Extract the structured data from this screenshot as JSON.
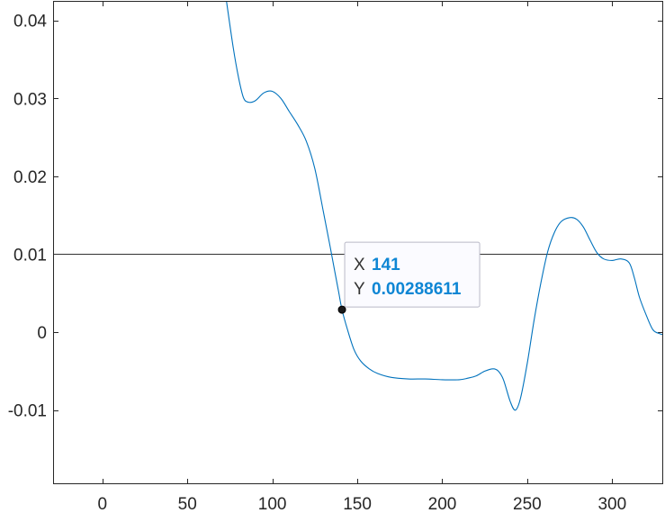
{
  "chart_data": {
    "type": "line",
    "title": "",
    "xlabel": "",
    "ylabel": "",
    "xlim": [
      -29,
      330
    ],
    "ylim": [
      -0.0195,
      0.0425
    ],
    "x_ticks": [
      0,
      50,
      100,
      150,
      200,
      250,
      300
    ],
    "y_ticks": [
      -0.01,
      0,
      0.01,
      0.02,
      0.03,
      0.04
    ],
    "x_tick_labels": [
      "0",
      "50",
      "100",
      "150",
      "200",
      "250",
      "300"
    ],
    "y_tick_labels": [
      "-0.01",
      "0",
      "0.01",
      "0.02",
      "0.03",
      "0.04"
    ],
    "grid": false,
    "reference_line": {
      "y": 0.01
    },
    "series": [
      {
        "color": "#0072BD",
        "x": [
          73,
          77,
          80,
          83,
          86,
          90,
          95,
          100,
          105,
          110,
          115,
          120,
          125,
          130,
          134,
          137,
          139,
          141,
          144,
          148,
          152,
          157,
          162,
          170,
          180,
          190,
          200,
          210,
          215,
          220,
          225,
          230,
          233,
          236,
          240,
          243,
          246,
          250,
          254,
          258,
          262,
          266,
          270,
          275,
          279,
          283,
          287,
          291,
          295,
          300,
          305,
          310,
          313,
          316,
          320,
          324,
          328,
          330
        ],
        "y": [
          0.0425,
          0.0365,
          0.0328,
          0.0301,
          0.0295,
          0.0297,
          0.0307,
          0.0309,
          0.03,
          0.0283,
          0.0266,
          0.0245,
          0.021,
          0.0155,
          0.011,
          0.0075,
          0.0052,
          0.00288611,
          0.0005,
          -0.0022,
          -0.0037,
          -0.0047,
          -0.0053,
          -0.0058,
          -0.006,
          -0.006,
          -0.0061,
          -0.0061,
          -0.0059,
          -0.0056,
          -0.005,
          -0.0047,
          -0.005,
          -0.0061,
          -0.0089,
          -0.01,
          -0.0085,
          -0.004,
          0.0015,
          0.0063,
          0.0103,
          0.0128,
          0.0142,
          0.0147,
          0.0145,
          0.0135,
          0.0118,
          0.0102,
          0.0094,
          0.0092,
          0.0094,
          0.0089,
          0.007,
          0.0045,
          0.0022,
          0.0003,
          -0.0002,
          -0.0003
        ]
      }
    ],
    "datatip": {
      "x": 141,
      "y": 0.00288611,
      "x_label": "X",
      "y_label": "Y",
      "x_value": "141",
      "y_value": "0.00288611"
    }
  },
  "colors": {
    "line": "#0072BD",
    "axes": "#262626",
    "tip_value": "#0E86D4",
    "ref_line": "#333333"
  }
}
